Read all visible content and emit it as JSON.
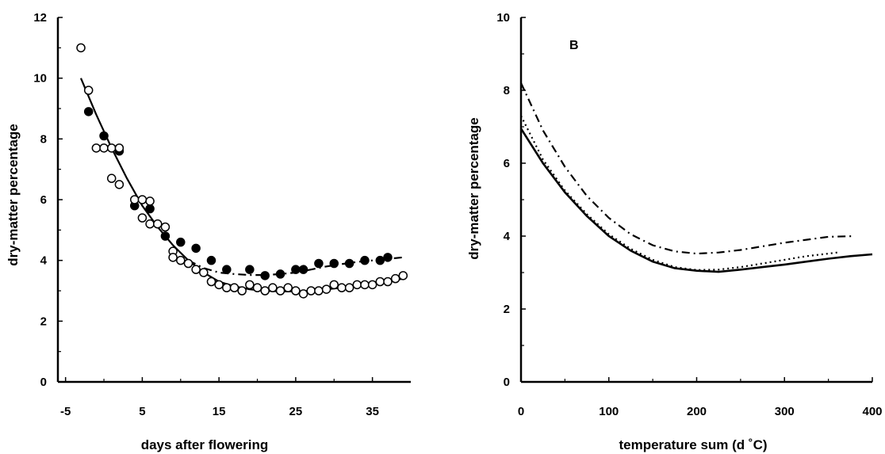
{
  "chart_data": [
    {
      "type": "scatter",
      "title": "",
      "panel_label": "",
      "xlabel": "days after flowering",
      "ylabel": "dry-matter percentage",
      "xlim": [
        -6,
        40
      ],
      "ylim": [
        0,
        12
      ],
      "x_ticks": [
        -5,
        5,
        15,
        25,
        35
      ],
      "y_ticks": [
        0,
        2,
        4,
        6,
        8,
        10,
        12
      ],
      "grid": false,
      "legend": "none",
      "series": [
        {
          "marker": "filled-circle",
          "points": [
            [
              -2,
              8.9
            ],
            [
              0,
              8.1
            ],
            [
              2,
              7.6
            ],
            [
              4,
              5.8
            ],
            [
              6,
              5.7
            ],
            [
              8,
              4.8
            ],
            [
              10,
              4.6
            ],
            [
              12,
              4.4
            ],
            [
              14,
              4.0
            ],
            [
              16,
              3.7
            ],
            [
              19,
              3.7
            ],
            [
              21,
              3.5
            ],
            [
              23,
              3.55
            ],
            [
              25,
              3.7
            ],
            [
              26,
              3.7
            ],
            [
              28,
              3.9
            ],
            [
              30,
              3.9
            ],
            [
              32,
              3.9
            ],
            [
              34,
              4.0
            ],
            [
              36,
              4.0
            ],
            [
              37,
              4.1
            ]
          ]
        },
        {
          "marker": "open-circle",
          "points": [
            [
              -3,
              11.0
            ],
            [
              -2,
              9.6
            ],
            [
              -1,
              7.7
            ],
            [
              0,
              7.7
            ],
            [
              1,
              7.7
            ],
            [
              2,
              7.7
            ],
            [
              1,
              6.7
            ],
            [
              2,
              6.5
            ],
            [
              4,
              6.0
            ],
            [
              5,
              6.0
            ],
            [
              6,
              5.95
            ],
            [
              5,
              5.4
            ],
            [
              6,
              5.2
            ],
            [
              7,
              5.2
            ],
            [
              8,
              5.1
            ],
            [
              9,
              4.3
            ],
            [
              9,
              4.1
            ],
            [
              10,
              4.0
            ],
            [
              11,
              3.9
            ],
            [
              12,
              3.7
            ],
            [
              13,
              3.6
            ],
            [
              14,
              3.3
            ],
            [
              15,
              3.2
            ],
            [
              16,
              3.1
            ],
            [
              17,
              3.1
            ],
            [
              18,
              3.0
            ],
            [
              19,
              3.2
            ],
            [
              20,
              3.1
            ],
            [
              21,
              3.0
            ],
            [
              22,
              3.1
            ],
            [
              23,
              3.0
            ],
            [
              24,
              3.1
            ],
            [
              25,
              3.0
            ],
            [
              26,
              2.9
            ],
            [
              27,
              3.0
            ],
            [
              28,
              3.0
            ],
            [
              29,
              3.05
            ],
            [
              30,
              3.2
            ],
            [
              31,
              3.1
            ],
            [
              32,
              3.1
            ],
            [
              33,
              3.2
            ],
            [
              34,
              3.2
            ],
            [
              35,
              3.2
            ],
            [
              36,
              3.3
            ],
            [
              37,
              3.3
            ],
            [
              38,
              3.4
            ],
            [
              39,
              3.5
            ]
          ]
        }
      ],
      "curves": [
        {
          "style": "solid",
          "x": [
            -3,
            -1,
            1,
            3,
            5,
            7,
            9,
            11,
            13,
            15,
            17,
            19,
            21,
            23,
            25,
            27,
            29,
            31,
            33,
            35,
            37,
            39
          ],
          "y": [
            10.0,
            8.8,
            7.7,
            6.7,
            5.8,
            5.1,
            4.5,
            4.0,
            3.6,
            3.3,
            3.15,
            3.05,
            3.0,
            2.98,
            2.98,
            3.0,
            3.05,
            3.1,
            3.15,
            3.2,
            3.3,
            3.4
          ]
        },
        {
          "style": "dash-dot",
          "x": [
            11,
            13,
            15,
            17,
            19,
            21,
            23,
            25,
            27,
            29,
            31,
            33,
            35,
            37,
            39
          ],
          "y": [
            4.0,
            3.75,
            3.6,
            3.55,
            3.52,
            3.52,
            3.55,
            3.6,
            3.7,
            3.8,
            3.88,
            3.95,
            4.0,
            4.05,
            4.1
          ]
        }
      ]
    },
    {
      "type": "line",
      "title": "",
      "panel_label": "B",
      "xlabel": "temperature sum (d ˚C)",
      "ylabel": "dry-matter percentage",
      "xlim": [
        0,
        400
      ],
      "ylim": [
        0,
        10
      ],
      "x_ticks": [
        0,
        100,
        200,
        300,
        400
      ],
      "y_ticks": [
        0,
        2,
        4,
        6,
        8,
        10
      ],
      "grid": false,
      "legend": "none",
      "series": [
        {
          "style": "solid",
          "x": [
            0,
            25,
            50,
            75,
            100,
            125,
            150,
            175,
            200,
            225,
            250,
            275,
            300,
            325,
            350,
            375,
            400
          ],
          "y": [
            6.95,
            6.0,
            5.2,
            4.55,
            4.0,
            3.6,
            3.3,
            3.12,
            3.05,
            3.02,
            3.08,
            3.15,
            3.22,
            3.3,
            3.38,
            3.45,
            3.5
          ]
        },
        {
          "style": "dotted",
          "x": [
            0,
            25,
            50,
            75,
            100,
            125,
            150,
            175,
            200,
            225,
            250,
            275,
            300,
            325,
            350,
            360
          ],
          "y": [
            7.3,
            6.1,
            5.25,
            4.6,
            4.05,
            3.65,
            3.35,
            3.15,
            3.07,
            3.08,
            3.15,
            3.25,
            3.35,
            3.45,
            3.52,
            3.55
          ]
        },
        {
          "style": "dash-dot",
          "x": [
            0,
            25,
            50,
            75,
            100,
            125,
            150,
            175,
            200,
            225,
            250,
            275,
            300,
            325,
            350,
            380
          ],
          "y": [
            8.2,
            6.9,
            5.9,
            5.1,
            4.5,
            4.05,
            3.75,
            3.58,
            3.52,
            3.55,
            3.62,
            3.72,
            3.82,
            3.9,
            3.98,
            4.0
          ]
        }
      ]
    }
  ]
}
